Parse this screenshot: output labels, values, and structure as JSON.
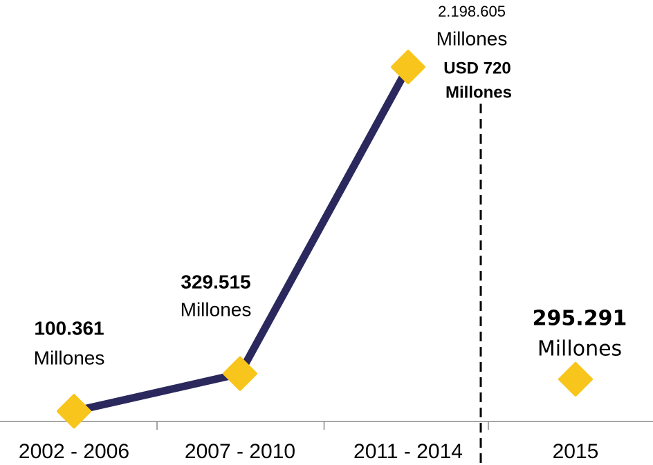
{
  "chart_data": {
    "type": "line",
    "categories": [
      "2002 - 2006",
      "2007 - 2010",
      "2011 - 2014",
      "2015"
    ],
    "series": [
      {
        "color": "#2a285c",
        "marker_color": "#f8c51c",
        "values": [
          100361,
          329515,
          2198605,
          null
        ],
        "value_labels": [
          "100.361",
          "329.515",
          "2.198.605",
          null
        ]
      },
      {
        "color": "#2a285c",
        "marker_color": "#f8c51c",
        "values": [
          null,
          null,
          null,
          295291
        ],
        "value_labels": [
          null,
          null,
          null,
          "295.291"
        ]
      }
    ],
    "unit_label": "Millones",
    "annotation_lines": [
      "USD 720",
      "Millones"
    ]
  }
}
